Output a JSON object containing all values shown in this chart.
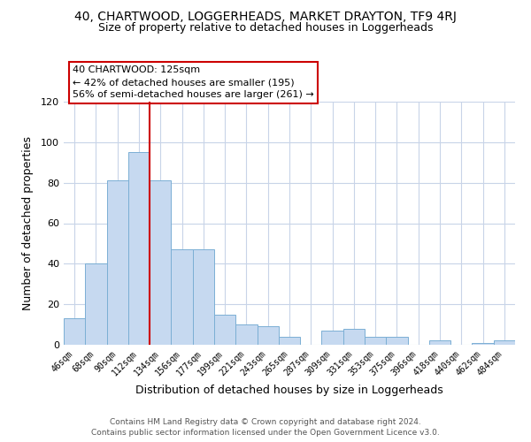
{
  "title": "40, CHARTWOOD, LOGGERHEADS, MARKET DRAYTON, TF9 4RJ",
  "subtitle": "Size of property relative to detached houses in Loggerheads",
  "xlabel": "Distribution of detached houses by size in Loggerheads",
  "ylabel": "Number of detached properties",
  "categories": [
    "46sqm",
    "68sqm",
    "90sqm",
    "112sqm",
    "134sqm",
    "156sqm",
    "177sqm",
    "199sqm",
    "221sqm",
    "243sqm",
    "265sqm",
    "287sqm",
    "309sqm",
    "331sqm",
    "353sqm",
    "375sqm",
    "396sqm",
    "418sqm",
    "440sqm",
    "462sqm",
    "484sqm"
  ],
  "values": [
    13,
    40,
    81,
    95,
    81,
    47,
    47,
    15,
    10,
    9,
    4,
    0,
    7,
    8,
    4,
    4,
    0,
    2,
    0,
    1,
    2
  ],
  "bar_color": "#c6d9f0",
  "bar_edge_color": "#7bafd4",
  "red_line_index": 3.5,
  "red_line_color": "#cc0000",
  "annotation_box_text": "40 CHARTWOOD: 125sqm\n← 42% of detached houses are smaller (195)\n56% of semi-detached houses are larger (261) →",
  "ylim": [
    0,
    120
  ],
  "yticks": [
    0,
    20,
    40,
    60,
    80,
    100,
    120
  ],
  "background_color": "#ffffff",
  "grid_color": "#c8d4e8",
  "footer_line1": "Contains HM Land Registry data © Crown copyright and database right 2024.",
  "footer_line2": "Contains public sector information licensed under the Open Government Licence v3.0."
}
